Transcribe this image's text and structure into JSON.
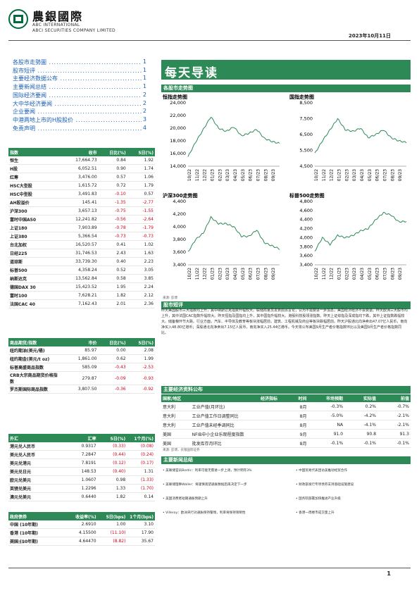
{
  "header": {
    "brand_cn": "農銀國際",
    "brand_en1": "ABC INTERNATIONAL",
    "brand_en2": "ABCI SECURITIES COMPANY LIMITED",
    "date": "2023年10月11日"
  },
  "toc": [
    {
      "label": "各股市走勢圖",
      "page": "1"
    },
    {
      "label": "股市短评",
      "page": "1"
    },
    {
      "label": "主要经济数据公布",
      "page": "1"
    },
    {
      "label": "主要新闻总结",
      "page": "1"
    },
    {
      "label": "国际经济要闻",
      "page": "2"
    },
    {
      "label": "大中华经济要闻",
      "page": "2"
    },
    {
      "label": "企业要闻",
      "page": "2"
    },
    {
      "label": "中港两地上市的H股股价",
      "page": "3"
    },
    {
      "label": "免责声明",
      "page": "4"
    }
  ],
  "indices": {
    "headers": [
      "指数",
      "收市",
      "日比(%)",
      "5日(%)"
    ],
    "rows": [
      [
        "恒生",
        "17,664.73",
        "0.84",
        "1.92"
      ],
      [
        "H股",
        "6,052.51",
        "0.90",
        "1.74"
      ],
      [
        "红筹",
        "3,476.00",
        "0.57",
        "1.06"
      ],
      [
        "HSC大型股",
        "1,615.72",
        "0.72",
        "1.79"
      ],
      [
        "HSC中型股",
        "3,491.83",
        "-0.10",
        "0.57"
      ],
      [
        "AH股溢价",
        "145.41",
        "-1.35",
        "-2.77"
      ],
      [
        "沪深300",
        "3,657.13",
        "-0.75",
        "-1.55"
      ],
      [
        "富时中国A50",
        "12,241.82",
        "-0.56",
        "-2.64"
      ],
      [
        "上证180",
        "7,903.89",
        "-0.78",
        "-1.79"
      ],
      [
        "上证380",
        "5,366.54",
        "-0.73",
        "-0.73"
      ],
      [
        "台北加权",
        "16,520.57",
        "0.41",
        "1.02"
      ],
      [
        "日经225",
        "31,746.53",
        "2.43",
        "1.63"
      ],
      [
        "道琼斯",
        "33,739.30",
        "0.40",
        "2.23"
      ],
      [
        "标普500",
        "4,358.24",
        "0.52",
        "3.05"
      ],
      [
        "纳斯达克",
        "13,562.84",
        "0.58",
        "3.85"
      ],
      [
        "德国DAX 30",
        "15,423.52",
        "1.95",
        "2.24"
      ],
      [
        "富时100",
        "7,628.21",
        "1.82",
        "2.12"
      ],
      [
        "法国CAC 40",
        "7,162.43",
        "2.01",
        "2.36"
      ]
    ]
  },
  "commodities": {
    "headers": [
      "商品期货/指数",
      "市价",
      "日比(%)",
      "5日(%)"
    ],
    "rows": [
      [
        "纽约期油(美元/桶)",
        "85.97",
        "0.00",
        "2.08"
      ],
      [
        "纽约期金(美元/t oz)",
        "1,861.00",
        "0.62",
        "1.99"
      ],
      [
        "标普高盛商品指数",
        "585.09",
        "-0.43",
        "-2.53"
      ],
      [
        "CRB大宗商品期货价格指数",
        "279.87",
        "-0.09",
        "-0.93"
      ],
      [
        "罗杰斯国际商品指数",
        "3,807.50",
        "-0.36",
        "-0.92"
      ]
    ]
  },
  "fx": {
    "headers": [
      "外汇",
      "汇率",
      "5日(%)",
      "1个月(%)"
    ],
    "rows": [
      [
        "港元兑人民币",
        "0.9317",
        "(0.33)",
        "(0.08)"
      ],
      [
        "美元兑人民币",
        "7.2847",
        "(0.44)",
        "(0.24)"
      ],
      [
        "美元兑港元",
        "7.8191",
        "(0.12)",
        "(0.17)"
      ],
      [
        "美元兑日元",
        "148.53",
        "(0.40)",
        "1.31"
      ],
      [
        "欧元兑美元",
        "1.0607",
        "0.98",
        "(1.33)"
      ],
      [
        "英镑兑美元",
        "1.2296",
        "1.33",
        "(1.70)"
      ],
      [
        "澳元兑美元",
        "0.6440",
        "1.82",
        "0.14"
      ]
    ]
  },
  "bonds": {
    "headers": [
      "政府债券",
      "收益率(%)",
      "5日(bps)",
      "1个月(bps)"
    ],
    "rows": [
      [
        "中国 (10年期)",
        "2.6910",
        "1.00",
        "3.10"
      ],
      [
        "香港 (10年期)",
        "4.15500",
        "(11.10)",
        "17.90"
      ],
      [
        "美国 (10年期)",
        "4.64470",
        "(8.82)",
        "35.67"
      ]
    ],
    "source": "来源: 彭博"
  },
  "main": {
    "title": "每天导读",
    "charts_section": "各股市走势图",
    "charts_source": "来源: 彭博",
    "commentary_section": "股市短评",
    "commentary": "昨天美国股市三大指数均上升，其中纳斯达克指数升幅较大。联储局官员发表鸽派言论，认为不需要进一步加息，美国经济经济不会衰退。昨天欧洲三大股市均上升，其中法国CAC指数升幅较大。昨天恒指及国指均上升，其中国指升幅较大。港股科技股领涨指数。昨天上证综指及深成指均下跌，其中上证指数跌幅较大。储备粮环节大跌。行业方面，汽车、半导体及教育等板块涨幅居前，建筑、工程机械及商业等板块跌幅居前。昨天沪股通北向净卖出47.07亿人民币，南向净买入48.80亿港币；深股通北向净卖出7.15亿人民币，南向净买入25.44亿港币。今天将公布美国9月生产者价格指数环比以及美国9月生产者价格指数同比。",
    "econ_section": "主要经济资料公布",
    "econ_headers": [
      "国家/地区",
      "经济指标",
      "时间",
      "市场预期",
      "实际值",
      "前值"
    ],
    "econ_rows": [
      [
        "意大利",
        "工业产值(月环比)",
        "8月",
        "-0.3%",
        "0.2%",
        "-0.7%"
      ],
      [
        "意大利",
        "工业产值工作日调整同比",
        "8月",
        "-5.0%",
        "-4.2%",
        "-2.1%"
      ],
      [
        "意大利",
        "工业产值未经季调同比",
        "8月",
        "NA",
        "-4.1%",
        "-2.1%"
      ],
      [
        "美国",
        "NFIB中小企业乐观程度指数",
        "9月",
        "91.0",
        "90.8",
        "91.3"
      ],
      [
        "美国",
        "批发库存月环比",
        "8月",
        "-0.1%",
        "-0.1%",
        "-0.1%"
      ]
    ],
    "econ_source": "来源: 彭博，农银国际证券",
    "news_section": "主要新闻总结",
    "news_left": [
      "• 美联储官员Bostic：利率可能无需进一步上调，预计明年3%",
      "• 美联储理事Waller：将谨慎观望通胀数据后再决定下一步",
      "• 美国消费者短期通胀预期上升",
      "• Villeroy：欧洲央行对通胀保持警惕，利率将保持限制性"
    ],
    "news_right": [
      "• 中国贸易代表团访美推动经贸合作",
      "• 财政部发行专项债券支持基础设施建设",
      "• 国务院部署加快推进产业升级",
      "• 香港一周楼市成交量上升"
    ]
  },
  "charts": [
    {
      "title": "恒指走势图",
      "yticks": [
        "24,000",
        "22,000",
        "20,000",
        "18,000",
        "16,000",
        "14,000"
      ],
      "ymin": 14000,
      "ymax": 24000
    },
    {
      "title": "国指走势图",
      "yticks": [
        "8,500",
        "7,500",
        "6,500",
        "5,500",
        "4,500"
      ],
      "ymin": 4500,
      "ymax": 8500
    },
    {
      "title": "沪深300走势图",
      "yticks": [
        "4,400",
        "4,200",
        "4,000",
        "3,800",
        "3,600",
        "3,400"
      ],
      "ymin": 3400,
      "ymax": 4400
    },
    {
      "title": "标普500走势图",
      "yticks": [
        "4,800",
        "4,600",
        "4,400",
        "4,200",
        "4,000",
        "3,800",
        "3,600",
        "3,400"
      ],
      "ymin": 3400,
      "ymax": 4800
    }
  ],
  "chart_months": [
    "10/22",
    "11/22",
    "12/22",
    "01/23",
    "02/23",
    "03/23",
    "04/23",
    "05/23",
    "06/23",
    "07/23",
    "08/23",
    "09/23"
  ],
  "chart_data": [
    {
      "type": "line",
      "title": "恒指走势图",
      "x": [
        "10/22",
        "11/22",
        "12/22",
        "01/23",
        "02/23",
        "03/23",
        "04/23",
        "05/23",
        "06/23",
        "07/23",
        "08/23",
        "09/23",
        "10/23"
      ],
      "series": [
        {
          "values": [
            15500,
            17800,
            19800,
            21800,
            20000,
            19500,
            20200,
            18800,
            19200,
            19800,
            18400,
            17900,
            17600
          ]
        }
      ],
      "ylim": [
        14000,
        24000
      ]
    },
    {
      "type": "line",
      "title": "国指走势图",
      "x": [
        "10/22",
        "11/22",
        "12/22",
        "01/23",
        "02/23",
        "03/23",
        "04/23",
        "05/23",
        "06/23",
        "07/23",
        "08/23",
        "09/23",
        "10/23"
      ],
      "series": [
        {
          "values": [
            5300,
            6100,
            6800,
            7500,
            6800,
            6700,
            6900,
            6300,
            6500,
            6800,
            6300,
            6100,
            6000
          ]
        }
      ],
      "ylim": [
        4500,
        8500
      ]
    },
    {
      "type": "line",
      "title": "沪深300走势图",
      "x": [
        "10/22",
        "11/22",
        "12/22",
        "01/23",
        "02/23",
        "03/23",
        "04/23",
        "05/23",
        "06/23",
        "07/23",
        "08/23",
        "09/23",
        "10/23"
      ],
      "series": [
        {
          "values": [
            3600,
            3800,
            3900,
            4150,
            4050,
            4050,
            4000,
            3850,
            3850,
            3950,
            3750,
            3700,
            3650
          ]
        }
      ],
      "ylim": [
        3400,
        4400
      ]
    },
    {
      "type": "line",
      "title": "标普500走势图",
      "x": [
        "10/22",
        "11/22",
        "12/22",
        "01/23",
        "02/23",
        "03/23",
        "04/23",
        "05/23",
        "06/23",
        "07/23",
        "08/23",
        "09/23",
        "10/23"
      ],
      "series": [
        {
          "values": [
            3700,
            4000,
            3850,
            4050,
            4000,
            4050,
            4150,
            4200,
            4400,
            4550,
            4500,
            4350,
            4360
          ]
        }
      ],
      "ylim": [
        3400,
        4800
      ]
    }
  ],
  "colors": {
    "brand_green": "#2d8a57",
    "negative": "#d0021b",
    "link": "#1a5fb4"
  }
}
